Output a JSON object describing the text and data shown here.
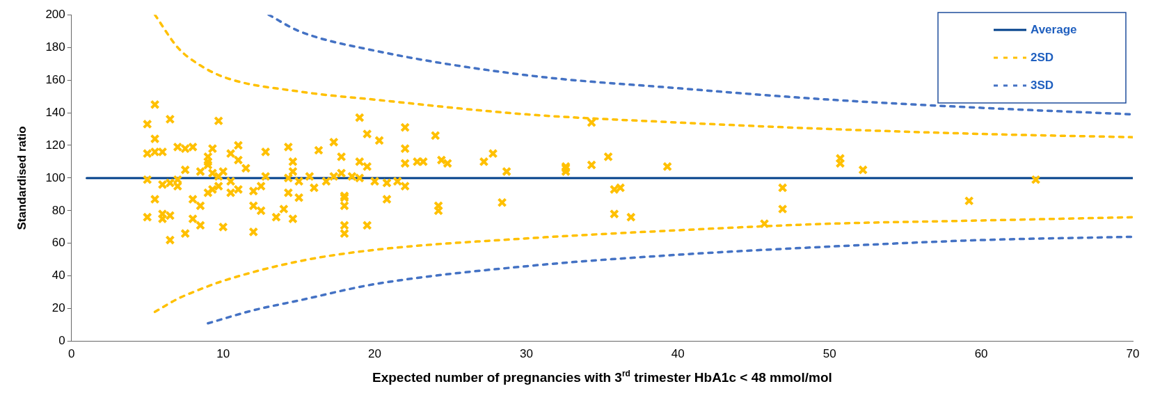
{
  "chart_data": {
    "type": "scatter",
    "xlabel": "Expected number of pregnancies with 3$^{rd}$ trimester HbA1c < 48 mmol/mol",
    "ylabel": "Standardised ratio",
    "xlim": [
      0,
      70
    ],
    "xticks": [
      0,
      10,
      20,
      30,
      40,
      50,
      60,
      70
    ],
    "ylim": [
      0,
      200
    ],
    "yticks": [
      0,
      20,
      40,
      60,
      80,
      100,
      120,
      140,
      160,
      180,
      200
    ],
    "grid": false,
    "legend": "top right",
    "series": [
      {
        "color": "#ffc000",
        "marker": "cross",
        "x": [
          5,
          5,
          5,
          5,
          5.5,
          5.5,
          5.5,
          5.5,
          6,
          6,
          6,
          6,
          6.5,
          6.5,
          6.5,
          6.5,
          7,
          7,
          7,
          7.5,
          7.5,
          7.5,
          8,
          8,
          8,
          8.5,
          8.5,
          8.5,
          9,
          9,
          9,
          9,
          9.3,
          9.3,
          9.3,
          9.7,
          9.7,
          9.7,
          10,
          10,
          10.5,
          10.5,
          10.5,
          11,
          11,
          11,
          11.5,
          12,
          12,
          12,
          12.5,
          12.5,
          12.8,
          12.8,
          13.5,
          14,
          14.3,
          14.3,
          14.3,
          14.6,
          14.6,
          14.6,
          15,
          15,
          15.7,
          16,
          16.3,
          16.8,
          17.3,
          17.3,
          17.8,
          17.8,
          18,
          18,
          18,
          18,
          18,
          18.5,
          19,
          19,
          19,
          19.5,
          19.5,
          19.5,
          20,
          20.3,
          20.8,
          20.8,
          21.5,
          22,
          22,
          22,
          22,
          22.8,
          23.2,
          24,
          24.2,
          24.2,
          24.4,
          24.8,
          27.2,
          27.8,
          28.4,
          28.7,
          32.6,
          32.6,
          32.6,
          34.3,
          34.3,
          35.4,
          35.8,
          35.8,
          36.2,
          36.9,
          39.3,
          45.7,
          46.9,
          46.9,
          50.7,
          50.7,
          52.2,
          59.2,
          63.6
        ],
        "values": [
          133,
          115,
          99,
          76,
          145,
          124,
          87,
          116,
          96,
          116,
          78,
          75,
          136,
          62,
          77,
          97,
          119,
          99,
          95,
          118,
          105,
          66,
          87,
          75,
          119,
          71,
          83,
          104,
          91,
          113,
          110,
          108,
          118,
          103,
          93,
          135,
          95,
          101,
          70,
          104,
          115,
          98,
          91,
          120,
          111,
          93,
          106,
          83,
          67,
          92,
          80,
          95,
          116,
          101,
          76,
          81,
          119,
          91,
          100,
          110,
          75,
          104,
          88,
          98,
          101,
          94,
          117,
          98,
          122,
          101,
          113,
          103,
          89,
          83,
          71,
          66,
          88,
          101,
          137,
          110,
          100,
          127,
          107,
          71,
          98,
          123,
          87,
          97,
          98,
          131,
          118,
          109,
          95,
          110,
          110,
          126,
          80,
          83,
          111,
          109,
          110,
          115,
          85,
          104,
          104,
          106,
          107,
          134,
          108,
          113,
          93,
          78,
          94,
          76,
          107,
          72,
          81,
          94,
          112,
          109,
          105,
          86,
          99
        ]
      },
      {
        "type": "line",
        "name": "Average",
        "color": "#003f8a",
        "line_style": "solid",
        "x": [
          1,
          70
        ],
        "values": [
          100,
          100
        ]
      },
      {
        "type": "line",
        "name": "2SD",
        "color": "#ffc000",
        "line_style": "dashed",
        "x": [
          5.5,
          7,
          8,
          10,
          15,
          20,
          30,
          40,
          50,
          60,
          70
        ],
        "values": [
          200,
          180,
          172,
          162,
          153,
          148,
          139,
          134,
          130,
          127,
          125
        ]
      },
      {
        "type": "line",
        "color": "#ffc000",
        "line_style": "dashed",
        "x": [
          5.5,
          7,
          8,
          10,
          15,
          20,
          30,
          40,
          50,
          60,
          70
        ],
        "values": [
          18,
          26,
          30,
          37,
          49,
          56,
          63,
          68,
          72,
          74,
          76
        ]
      },
      {
        "type": "line",
        "name": "3SD",
        "color": "#4472c4",
        "line_style": "dashed",
        "x": [
          13,
          15,
          20,
          30,
          40,
          50,
          60,
          70
        ],
        "values": [
          200,
          190,
          178,
          163,
          155,
          148,
          143,
          139
        ]
      },
      {
        "type": "line",
        "color": "#4472c4",
        "line_style": "dashed",
        "x": [
          9,
          12,
          15,
          20,
          30,
          40,
          50,
          60,
          70
        ],
        "values": [
          11,
          19,
          25,
          35,
          46,
          53,
          58,
          62,
          64
        ]
      }
    ]
  }
}
